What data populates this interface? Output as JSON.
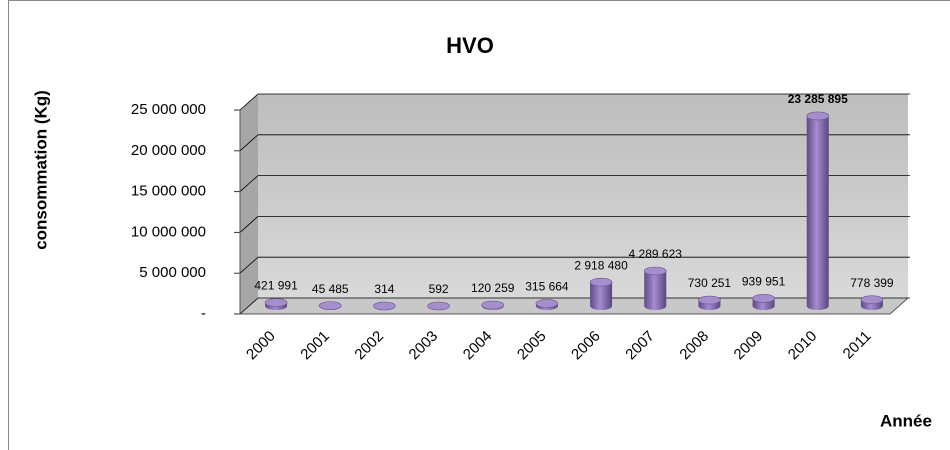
{
  "chart_data": {
    "type": "bar3d",
    "title": "HVO",
    "y_label": "consommation (Kg)",
    "x_label": "Année",
    "categories": [
      "2000",
      "2001",
      "2002",
      "2003",
      "2004",
      "2005",
      "2006",
      "2007",
      "2008",
      "2009",
      "2010",
      "2011"
    ],
    "values": [
      421991,
      45485,
      314,
      592,
      120259,
      315664,
      2918480,
      4289623,
      730251,
      939951,
      23285895,
      778399
    ],
    "value_labels": [
      "421 991",
      "45 485",
      "314",
      "592",
      "120 259",
      "315 664",
      "2 918 480",
      "4 289 623",
      "730 251",
      "939 951",
      "23 285 895",
      "778 399"
    ],
    "color": "#8064a2",
    "ylim": [
      0,
      25000000
    ],
    "yticks": [
      {
        "value": 0,
        "label": "-"
      },
      {
        "value": 5000000,
        "label": "5 000 000"
      },
      {
        "value": 10000000,
        "label": "10 000 000"
      },
      {
        "value": 15000000,
        "label": "15 000 000"
      },
      {
        "value": 20000000,
        "label": "20 000 000"
      },
      {
        "value": 25000000,
        "label": "25 000 000"
      }
    ],
    "grid": true
  }
}
